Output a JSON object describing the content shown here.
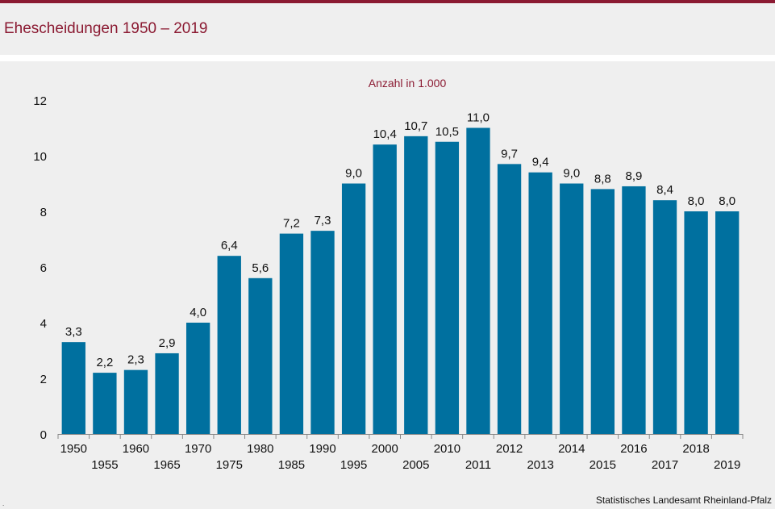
{
  "header": {
    "title": "Ehescheidungen 1950 – 2019"
  },
  "footer": {
    "source": "Statistisches Landesamt Rheinland-Pfalz",
    "dot": "."
  },
  "chart_data": {
    "type": "bar",
    "title": "Ehescheidungen 1950 – 2019",
    "subtitle": "Anzahl in 1.000",
    "xlabel": "",
    "ylabel": "",
    "categories": [
      "1950",
      "1955",
      "1960",
      "1965",
      "1970",
      "1975",
      "1980",
      "1985",
      "1990",
      "1995",
      "2000",
      "2005",
      "2010",
      "2011",
      "2012",
      "2013",
      "2014",
      "2015",
      "2016",
      "2017",
      "2018",
      "2019"
    ],
    "values": [
      3.3,
      2.2,
      2.3,
      2.9,
      4.0,
      6.4,
      5.6,
      7.2,
      7.3,
      9.0,
      10.4,
      10.7,
      10.5,
      11.0,
      9.7,
      9.4,
      9.0,
      8.8,
      8.9,
      8.4,
      8.0,
      8.0
    ],
    "data_labels": [
      "3,3",
      "2,2",
      "2,3",
      "2,9",
      "4,0",
      "6,4",
      "5,6",
      "7,2",
      "7,3",
      "9,0",
      "10,4",
      "10,7",
      "10,5",
      "11,0",
      "9,7",
      "9,4",
      "9,0",
      "8,8",
      "8,9",
      "8,4",
      "8,0",
      "8,0"
    ],
    "ylim": [
      0,
      12
    ],
    "yticks": [
      0,
      2,
      4,
      6,
      8,
      10,
      12
    ],
    "grid": false,
    "legend": "none",
    "bar_color": "#00709f"
  }
}
